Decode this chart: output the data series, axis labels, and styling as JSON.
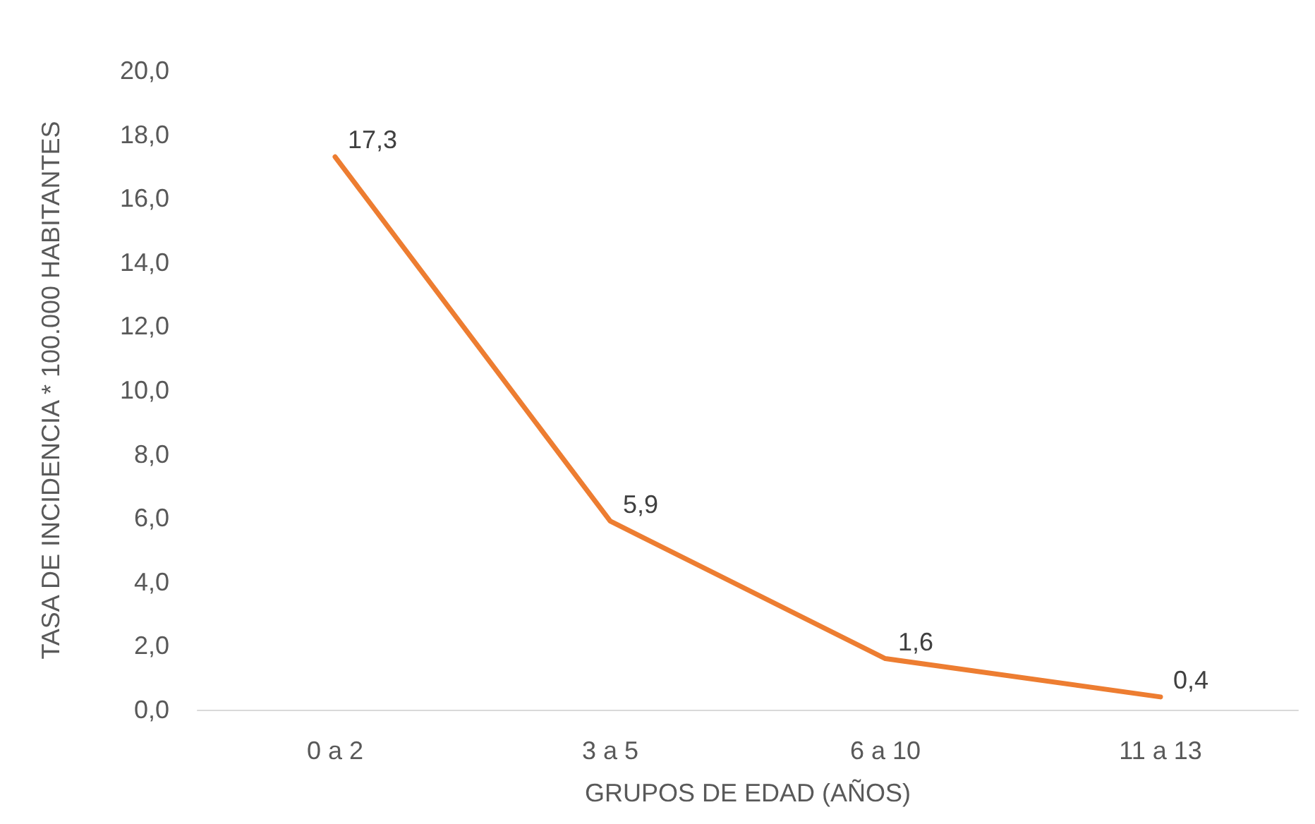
{
  "chart_data": {
    "type": "line",
    "xlabel": "GRUPOS DE EDAD (AÑOS)",
    "ylabel": "TASA DE INCIDENCIA * 100.000 HABITANTES",
    "categories": [
      "0 a 2",
      "3 a 5",
      "6 a 10",
      "11 a 13"
    ],
    "values": [
      17.3,
      5.9,
      1.6,
      0.4
    ],
    "color": "#ed7d31",
    "value_labels": [
      "17,3",
      "5,9",
      "1,6",
      "0,4"
    ],
    "ylim": [
      0,
      20
    ],
    "yticks": [
      {
        "value": 0,
        "label": "0,0"
      },
      {
        "value": 2,
        "label": "2,0"
      },
      {
        "value": 4,
        "label": "4,0"
      },
      {
        "value": 6,
        "label": "6,0"
      },
      {
        "value": 8,
        "label": "8,0"
      },
      {
        "value": 10,
        "label": "10,0"
      },
      {
        "value": 12,
        "label": "12,0"
      },
      {
        "value": 14,
        "label": "14,0"
      },
      {
        "value": 16,
        "label": "16,0"
      },
      {
        "value": 18,
        "label": "18,0"
      },
      {
        "value": 20,
        "label": "20,0"
      }
    ],
    "grid": false,
    "marker": "none",
    "line_style": "solid"
  }
}
